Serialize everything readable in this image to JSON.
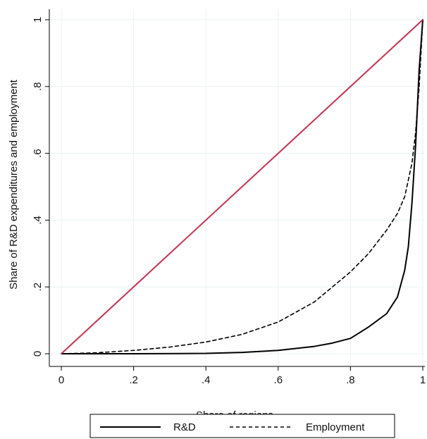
{
  "chart_data": {
    "type": "line",
    "xlabel": "Share of regions",
    "ylabel": "Share of R&D expenditures and employment",
    "xlim": [
      0,
      1
    ],
    "ylim": [
      0,
      1
    ],
    "x_ticks": [
      {
        "value": 0,
        "label": "0"
      },
      {
        "value": 0.2,
        "label": ".2"
      },
      {
        "value": 0.4,
        "label": ".4"
      },
      {
        "value": 0.6,
        "label": ".6"
      },
      {
        "value": 0.8,
        "label": ".8"
      },
      {
        "value": 1,
        "label": "1"
      }
    ],
    "y_ticks": [
      {
        "value": 0,
        "label": "0"
      },
      {
        "value": 0.2,
        "label": ".2"
      },
      {
        "value": 0.4,
        "label": ".4"
      },
      {
        "value": 0.6,
        "label": ".6"
      },
      {
        "value": 0.8,
        "label": ".8"
      },
      {
        "value": 1,
        "label": "1"
      }
    ],
    "grid": true,
    "legend_position": "bottom",
    "series": [
      {
        "name": "R&D",
        "color": "#000000",
        "style": "solid",
        "in_legend": true,
        "x": [
          0,
          0.2,
          0.4,
          0.5,
          0.6,
          0.7,
          0.75,
          0.8,
          0.85,
          0.9,
          0.93,
          0.95,
          0.96,
          0.97,
          0.98,
          0.99,
          1.0
        ],
        "y": [
          0,
          0,
          0.001,
          0.004,
          0.01,
          0.022,
          0.032,
          0.046,
          0.08,
          0.12,
          0.17,
          0.25,
          0.32,
          0.45,
          0.62,
          0.85,
          1.0
        ]
      },
      {
        "name": "Employment",
        "color": "#000000",
        "style": "dashed",
        "in_legend": true,
        "x": [
          0,
          0.1,
          0.2,
          0.3,
          0.4,
          0.5,
          0.6,
          0.7,
          0.8,
          0.85,
          0.9,
          0.93,
          0.95,
          0.97,
          0.98,
          0.99,
          1.0
        ],
        "y": [
          0,
          0.003,
          0.01,
          0.02,
          0.035,
          0.058,
          0.095,
          0.155,
          0.245,
          0.3,
          0.37,
          0.42,
          0.47,
          0.57,
          0.66,
          0.8,
          1.0
        ]
      },
      {
        "name": "",
        "color": "#c8304f",
        "style": "solid",
        "in_legend": false,
        "x": [
          0,
          1
        ],
        "y": [
          0,
          1
        ]
      }
    ]
  }
}
